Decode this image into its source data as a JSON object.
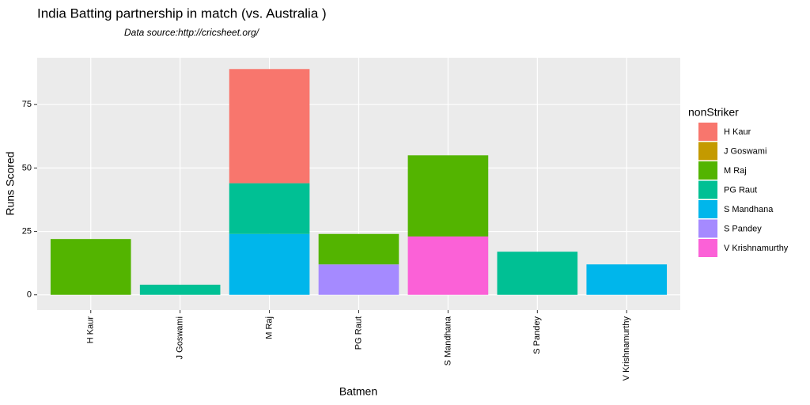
{
  "chart_data": {
    "type": "stacked_bar",
    "title": "India Batting partnership in match (vs. Australia )",
    "subtitle": "Data source:http://cricsheet.org/",
    "x_label": "Batmen",
    "y_label": "Runs Scored",
    "legend_title": "nonStriker",
    "legend_position": "right",
    "grid": true,
    "categories": [
      "H Kaur",
      "J Goswami",
      "M Raj",
      "PG Raut",
      "S Mandhana",
      "S Pandey",
      "V Krishnamurthy"
    ],
    "series": [
      {
        "name": "H Kaur",
        "color": "#F8766D",
        "values": [
          null,
          null,
          45,
          null,
          null,
          null,
          null
        ]
      },
      {
        "name": "J Goswami",
        "color": "#C49A00",
        "values": [
          null,
          null,
          null,
          null,
          null,
          null,
          null
        ]
      },
      {
        "name": "M Raj",
        "color": "#53B400",
        "values": [
          22,
          null,
          null,
          12,
          32,
          null,
          null
        ]
      },
      {
        "name": "PG Raut",
        "color": "#00C094",
        "values": [
          null,
          4,
          20,
          null,
          null,
          17,
          null
        ]
      },
      {
        "name": "S Mandhana",
        "color": "#00B6EB",
        "values": [
          null,
          null,
          24,
          null,
          null,
          null,
          12
        ]
      },
      {
        "name": "S Pandey",
        "color": "#A58AFF",
        "values": [
          null,
          null,
          null,
          12,
          null,
          null,
          null
        ]
      },
      {
        "name": "V Krishnamurthy",
        "color": "#FB61D7",
        "values": [
          null,
          null,
          null,
          null,
          23,
          null,
          null
        ]
      }
    ],
    "ylim": [
      -4.45,
      93.45
    ],
    "yticks": [
      0,
      25,
      50,
      75
    ]
  }
}
